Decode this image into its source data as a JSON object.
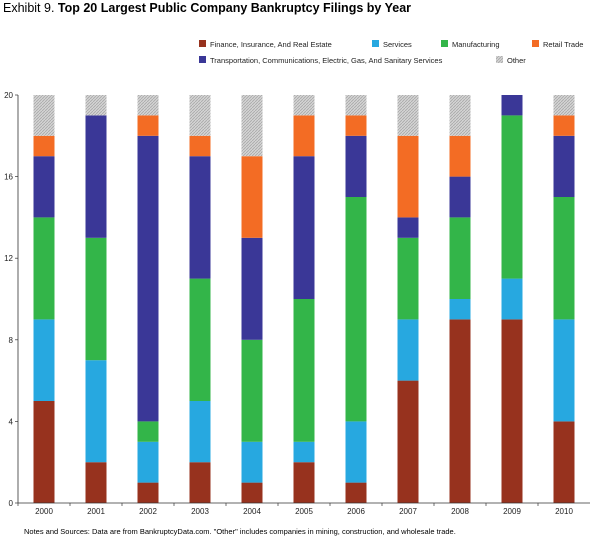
{
  "header": {
    "exhibit_label": "Exhibit 9.",
    "title": "Top 20 Largest Public Company Bankruptcy Filings by Year"
  },
  "notes": "Notes and Sources: Data are from BankruptcyData.com. \"Other\" includes companies in mining, construction, and wholesale trade.",
  "chart_data": {
    "type": "bar",
    "stacked": true,
    "title": "Top 20 Largest Public Company Bankruptcy Filings by Year",
    "xlabel": "",
    "ylabel": "",
    "ylim": [
      0,
      20
    ],
    "yticks": [
      0,
      4,
      8,
      12,
      16,
      20
    ],
    "grid": false,
    "legend_position": "top",
    "categories": [
      "2000",
      "2001",
      "2002",
      "2003",
      "2004",
      "2005",
      "2006",
      "2007",
      "2008",
      "2009",
      "2010"
    ],
    "series": [
      {
        "name": "Finance, Insurance, And Real Estate",
        "color": "#97321e",
        "values": [
          5,
          2,
          1,
          2,
          1,
          2,
          1,
          6,
          9,
          9,
          4
        ]
      },
      {
        "name": "Services",
        "color": "#27a8e0",
        "values": [
          4,
          5,
          2,
          3,
          2,
          1,
          3,
          3,
          1,
          2,
          5
        ]
      },
      {
        "name": "Manufacturing",
        "color": "#33b549",
        "values": [
          5,
          6,
          1,
          6,
          5,
          7,
          11,
          4,
          4,
          8,
          6
        ]
      },
      {
        "name": "Transportation, Communications, Electric, Gas, And Sanitary Services",
        "color": "#3a3797",
        "values": [
          3,
          6,
          14,
          6,
          5,
          7,
          3,
          1,
          2,
          1,
          3
        ]
      },
      {
        "name": "Retail Trade",
        "color": "#f36c24",
        "values": [
          1,
          0,
          1,
          1,
          4,
          2,
          1,
          4,
          2,
          0,
          1
        ]
      },
      {
        "name": "Other",
        "color": "#c8c8c8",
        "pattern": "hatch",
        "values": [
          2,
          1,
          1,
          2,
          3,
          1,
          1,
          2,
          2,
          0,
          1
        ]
      }
    ]
  }
}
